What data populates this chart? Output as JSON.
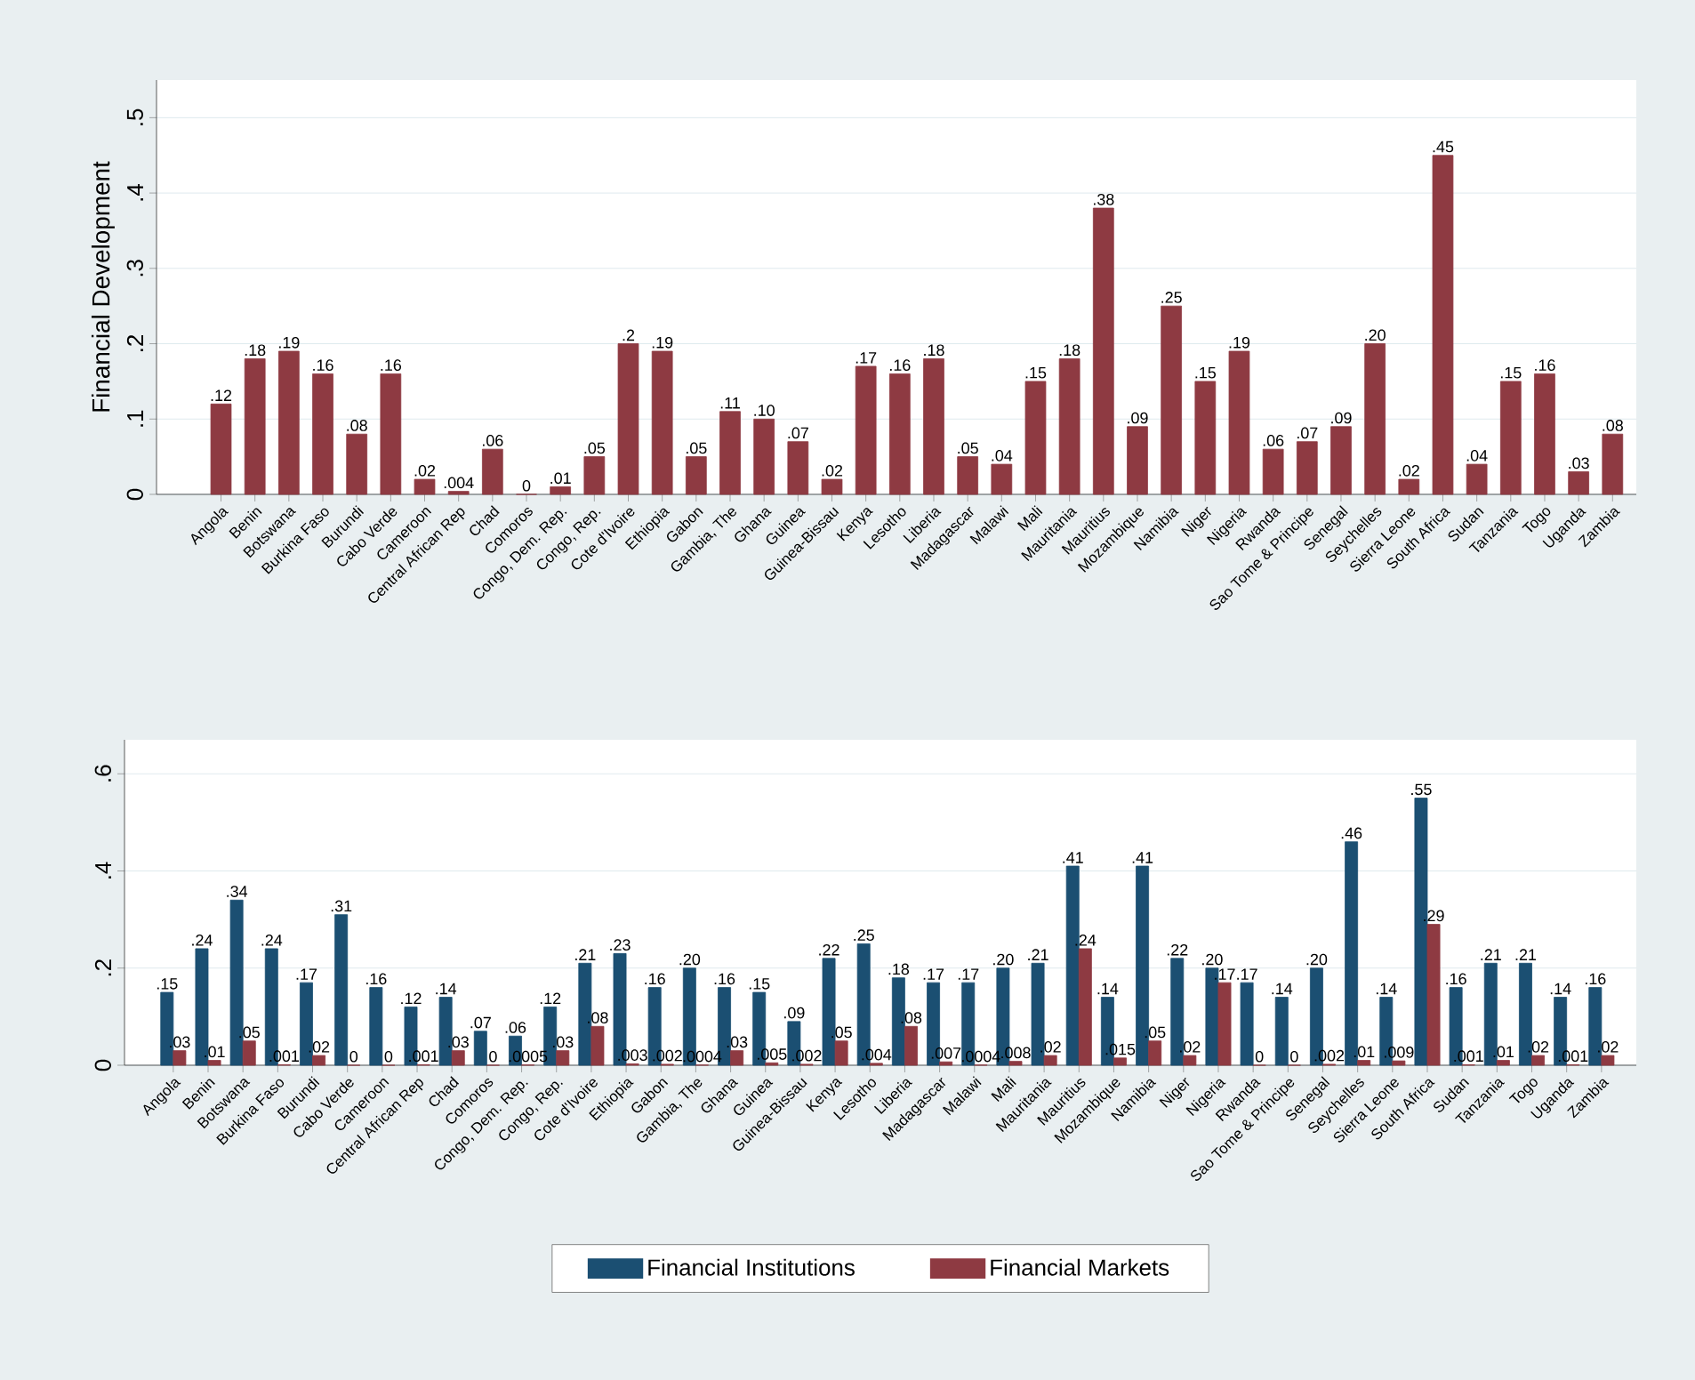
{
  "chart_data": [
    {
      "type": "bar",
      "ylabel": "Financial Development",
      "color": "#8e3a42",
      "grid": "y",
      "categories": [
        "Angola",
        "Benin",
        "Botswana",
        "Burkina Faso",
        "Burundi",
        "Cabo Verde",
        "Cameroon",
        "Central African Rep",
        "Chad",
        "Comoros",
        "Congo, Dem. Rep.",
        "Congo, Rep.",
        "Cote d'Ivoire",
        "Ethiopia",
        "Gabon",
        "Gambia, The",
        "Ghana",
        "Guinea",
        "Guinea-Bissau",
        "Kenya",
        "Lesotho",
        "Liberia",
        "Madagascar",
        "Malawi",
        "Mali",
        "Mauritania",
        "Mauritius",
        "Mozambique",
        "Namibia",
        "Niger",
        "Nigeria",
        "Rwanda",
        "Sao Tome & Principe",
        "Senegal",
        "Seychelles",
        "Sierra Leone",
        "South Africa",
        "Sudan",
        "Tanzania",
        "Togo",
        "Uganda",
        "Zambia"
      ],
      "values": [
        0.12,
        0.18,
        0.19,
        0.16,
        0.08,
        0.16,
        0.02,
        0.004,
        0.06,
        0,
        0.01,
        0.05,
        0.2,
        0.19,
        0.05,
        0.11,
        0.1,
        0.07,
        0.02,
        0.17,
        0.16,
        0.18,
        0.05,
        0.04,
        0.15,
        0.18,
        0.38,
        0.09,
        0.25,
        0.15,
        0.19,
        0.06,
        0.07,
        0.09,
        0.2,
        0.02,
        0.45,
        0.04,
        0.15,
        0.16,
        0.03,
        0.08
      ],
      "value_labels": [
        ".12",
        ".18",
        ".19",
        ".16",
        ".08",
        ".16",
        ".02",
        ".004",
        ".06",
        "0",
        ".01",
        ".05",
        ".2",
        ".19",
        ".05",
        ".11",
        ".10",
        ".07",
        ".02",
        ".17",
        ".16",
        ".18",
        ".05",
        ".04",
        ".15",
        ".18",
        ".38",
        ".09",
        ".25",
        ".15",
        ".19",
        ".06",
        ".07",
        ".09",
        ".20",
        ".02",
        ".45",
        ".04",
        ".15",
        ".16",
        ".03",
        ".08"
      ],
      "ylim": [
        0,
        0.55
      ],
      "yticks": [
        0,
        {
          "value": 0.1,
          "label": ".1"
        },
        {
          "value": 0.2,
          "label": ".2"
        },
        {
          "value": 0.3,
          "label": ".3"
        },
        {
          "value": 0.4,
          "label": ".4"
        },
        {
          "value": 0.5,
          "label": ".5"
        }
      ]
    },
    {
      "type": "bar",
      "grid": "y",
      "legend": "bottom",
      "categories": [
        "Angola",
        "Benin",
        "Botswana",
        "Burkina Faso",
        "Burundi",
        "Cabo Verde",
        "Cameroon",
        "Central African Rep",
        "Chad",
        "Comoros",
        "Congo, Dem. Rep.",
        "Congo, Rep.",
        "Cote d'Ivoire",
        "Ethiopia",
        "Gabon",
        "Gambia, The",
        "Ghana",
        "Guinea",
        "Guinea-Bissau",
        "Kenya",
        "Lesotho",
        "Liberia",
        "Madagascar",
        "Malawi",
        "Mali",
        "Mauritania",
        "Mauritius",
        "Mozambique",
        "Namibia",
        "Niger",
        "Nigeria",
        "Rwanda",
        "Sao Tome & Principe",
        "Senegal",
        "Seychelles",
        "Sierra Leone",
        "South Africa",
        "Sudan",
        "Tanzania",
        "Togo",
        "Uganda",
        "Zambia"
      ],
      "series": [
        {
          "name": "Financial Institutions",
          "color": "#1b4f72",
          "values": [
            0.15,
            0.24,
            0.34,
            0.24,
            0.17,
            0.31,
            0.16,
            0.12,
            0.14,
            0.07,
            0.06,
            0.12,
            0.21,
            0.23,
            0.16,
            0.2,
            0.16,
            0.15,
            0.09,
            0.22,
            0.25,
            0.18,
            0.17,
            0.17,
            0.2,
            0.21,
            0.41,
            0.14,
            0.41,
            0.22,
            0.2,
            0.17,
            0.14,
            0.2,
            0.46,
            0.14,
            0.55,
            0.16,
            0.21,
            0.21,
            0.14,
            0.16
          ],
          "value_labels": [
            ".15",
            ".24",
            ".34",
            ".24",
            ".17",
            ".31",
            ".16",
            ".12",
            ".14",
            ".07",
            ".06",
            ".12",
            ".21",
            ".23",
            ".16",
            ".20",
            ".16",
            ".15",
            ".09",
            ".22",
            ".25",
            ".18",
            ".17",
            ".17",
            ".20",
            ".21",
            ".41",
            ".14",
            ".41",
            ".22",
            ".20",
            ".17",
            ".14",
            ".20",
            ".46",
            ".14",
            ".55",
            ".16",
            ".21",
            ".21",
            ".14",
            ".16"
          ]
        },
        {
          "name": "Financial Markets",
          "color": "#8e3a42",
          "values": [
            0.03,
            0.01,
            0.05,
            0.001,
            0.02,
            0,
            0,
            0.001,
            0.03,
            0,
            0.0005,
            0.03,
            0.08,
            0.003,
            0.002,
            0.0004,
            0.03,
            0.005,
            0.002,
            0.05,
            0.004,
            0.08,
            0.007,
            0.0004,
            0.008,
            0.02,
            0.24,
            0.015,
            0.05,
            0.02,
            0.17,
            0,
            0,
            0.002,
            0.01,
            0.009,
            0.29,
            0.001,
            0.01,
            0.02,
            0.001,
            0.02
          ],
          "value_labels": [
            ".03",
            ".01",
            ".05",
            ".001",
            ".02",
            "0",
            "0",
            ".001",
            ".03",
            "0",
            ".0005",
            ".03",
            ".08",
            ".003",
            ".002",
            ".0004",
            ".03",
            ".005",
            ".002",
            ".05",
            ".004",
            ".08",
            ".007",
            ".0004",
            ".008",
            ".02",
            ".24",
            ".015",
            ".05",
            ".02",
            ".17",
            "0",
            "0",
            ".002",
            ".01",
            ".009",
            ".29",
            ".001",
            ".01",
            ".02",
            ".001",
            ".02"
          ]
        }
      ],
      "ylim": [
        0,
        0.67
      ],
      "yticks": [
        0,
        {
          "value": 0.2,
          "label": ".2"
        },
        {
          "value": 0.4,
          "label": ".4"
        },
        {
          "value": 0.6,
          "label": ".6"
        }
      ]
    }
  ]
}
